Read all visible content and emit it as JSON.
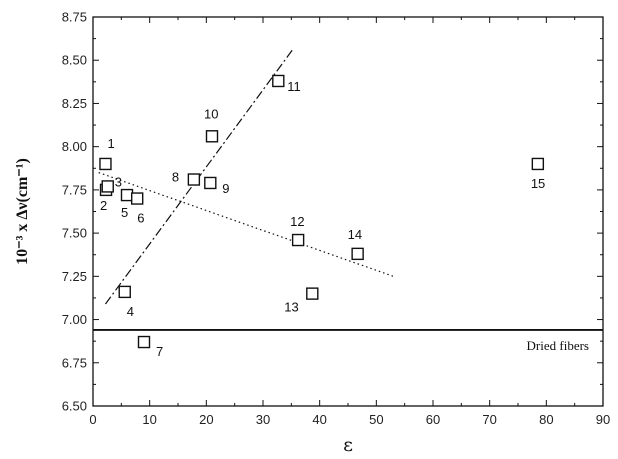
{
  "chart_data": {
    "type": "scatter",
    "xlabel": "ε",
    "ylabel": "10⁻³ x Δν(cm⁻¹)",
    "xlim": [
      0,
      90
    ],
    "ylim": [
      6.5,
      8.75
    ],
    "x_ticks": [
      "0",
      "10",
      "20",
      "30",
      "40",
      "50",
      "60",
      "70",
      "80",
      "90"
    ],
    "y_ticks": [
      "6.50",
      "6.75",
      "7.00",
      "7.25",
      "7.50",
      "7.75",
      "8.00",
      "8.25",
      "8.50",
      "8.75"
    ],
    "grid": false,
    "points": [
      {
        "label": "1",
        "x": 2.2,
        "y": 7.9
      },
      {
        "label": "2",
        "x": 2.3,
        "y": 7.75
      },
      {
        "label": "3",
        "x": 2.6,
        "y": 7.77
      },
      {
        "label": "4",
        "x": 5.6,
        "y": 7.16
      },
      {
        "label": "5",
        "x": 6.0,
        "y": 7.72
      },
      {
        "label": "6",
        "x": 7.8,
        "y": 7.7
      },
      {
        "label": "7",
        "x": 9.0,
        "y": 6.87
      },
      {
        "label": "8",
        "x": 17.8,
        "y": 7.81
      },
      {
        "label": "9",
        "x": 20.7,
        "y": 7.79
      },
      {
        "label": "10",
        "x": 21.0,
        "y": 8.06
      },
      {
        "label": "11",
        "x": 32.7,
        "y": 8.38
      },
      {
        "label": "12",
        "x": 36.2,
        "y": 7.46
      },
      {
        "label": "13",
        "x": 38.7,
        "y": 7.15
      },
      {
        "label": "14",
        "x": 46.7,
        "y": 7.38
      },
      {
        "label": "15",
        "x": 78.5,
        "y": 7.9
      }
    ],
    "fit_lines": [
      {
        "style": "dash-dot",
        "from": [
          2.2,
          7.09
        ],
        "to": [
          35.2,
          8.56
        ]
      },
      {
        "style": "dotted",
        "from": [
          1.0,
          7.85
        ],
        "to": [
          53.0,
          7.25
        ]
      }
    ],
    "reference_line": {
      "y": 6.94,
      "label": "Dried fibers"
    }
  }
}
